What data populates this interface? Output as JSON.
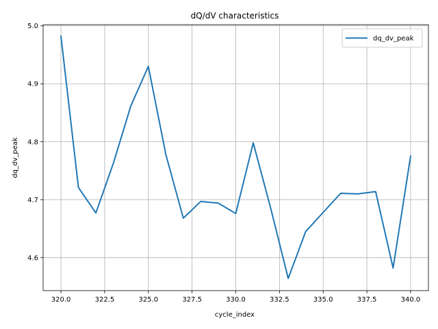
{
  "chart_data": {
    "type": "line",
    "title": "dQ/dV characteristics",
    "xlabel": "cycle_index",
    "ylabel": "dq_dv_peak",
    "xlim": [
      318.98,
      341.02
    ],
    "ylim": [
      4.543,
      5.002
    ],
    "x_ticks": [
      320.0,
      322.5,
      325.0,
      327.5,
      330.0,
      332.5,
      335.0,
      337.5,
      340.0
    ],
    "x_tick_labels": [
      "320.0",
      "322.5",
      "325.0",
      "327.5",
      "330.0",
      "332.5",
      "335.0",
      "337.5",
      "340.0"
    ],
    "y_ticks": [
      4.6,
      4.7,
      4.8,
      4.9,
      5.0
    ],
    "y_tick_labels": [
      "4.6",
      "4.7",
      "4.8",
      "4.9",
      "5.0"
    ],
    "grid": true,
    "legend_position": "top-right",
    "series": [
      {
        "name": "dq_dv_peak",
        "color": "#1f77b4",
        "x": [
          320,
          321,
          322,
          323,
          324,
          325,
          326,
          327,
          328,
          329,
          330,
          331,
          332,
          333,
          334,
          335,
          336,
          337,
          338,
          339,
          340
        ],
        "y": [
          4.982,
          4.721,
          4.677,
          4.763,
          4.862,
          4.93,
          4.778,
          4.668,
          4.697,
          4.694,
          4.676,
          4.798,
          4.685,
          4.564,
          4.645,
          4.678,
          4.711,
          4.71,
          4.714,
          4.582,
          4.775
        ]
      }
    ]
  }
}
